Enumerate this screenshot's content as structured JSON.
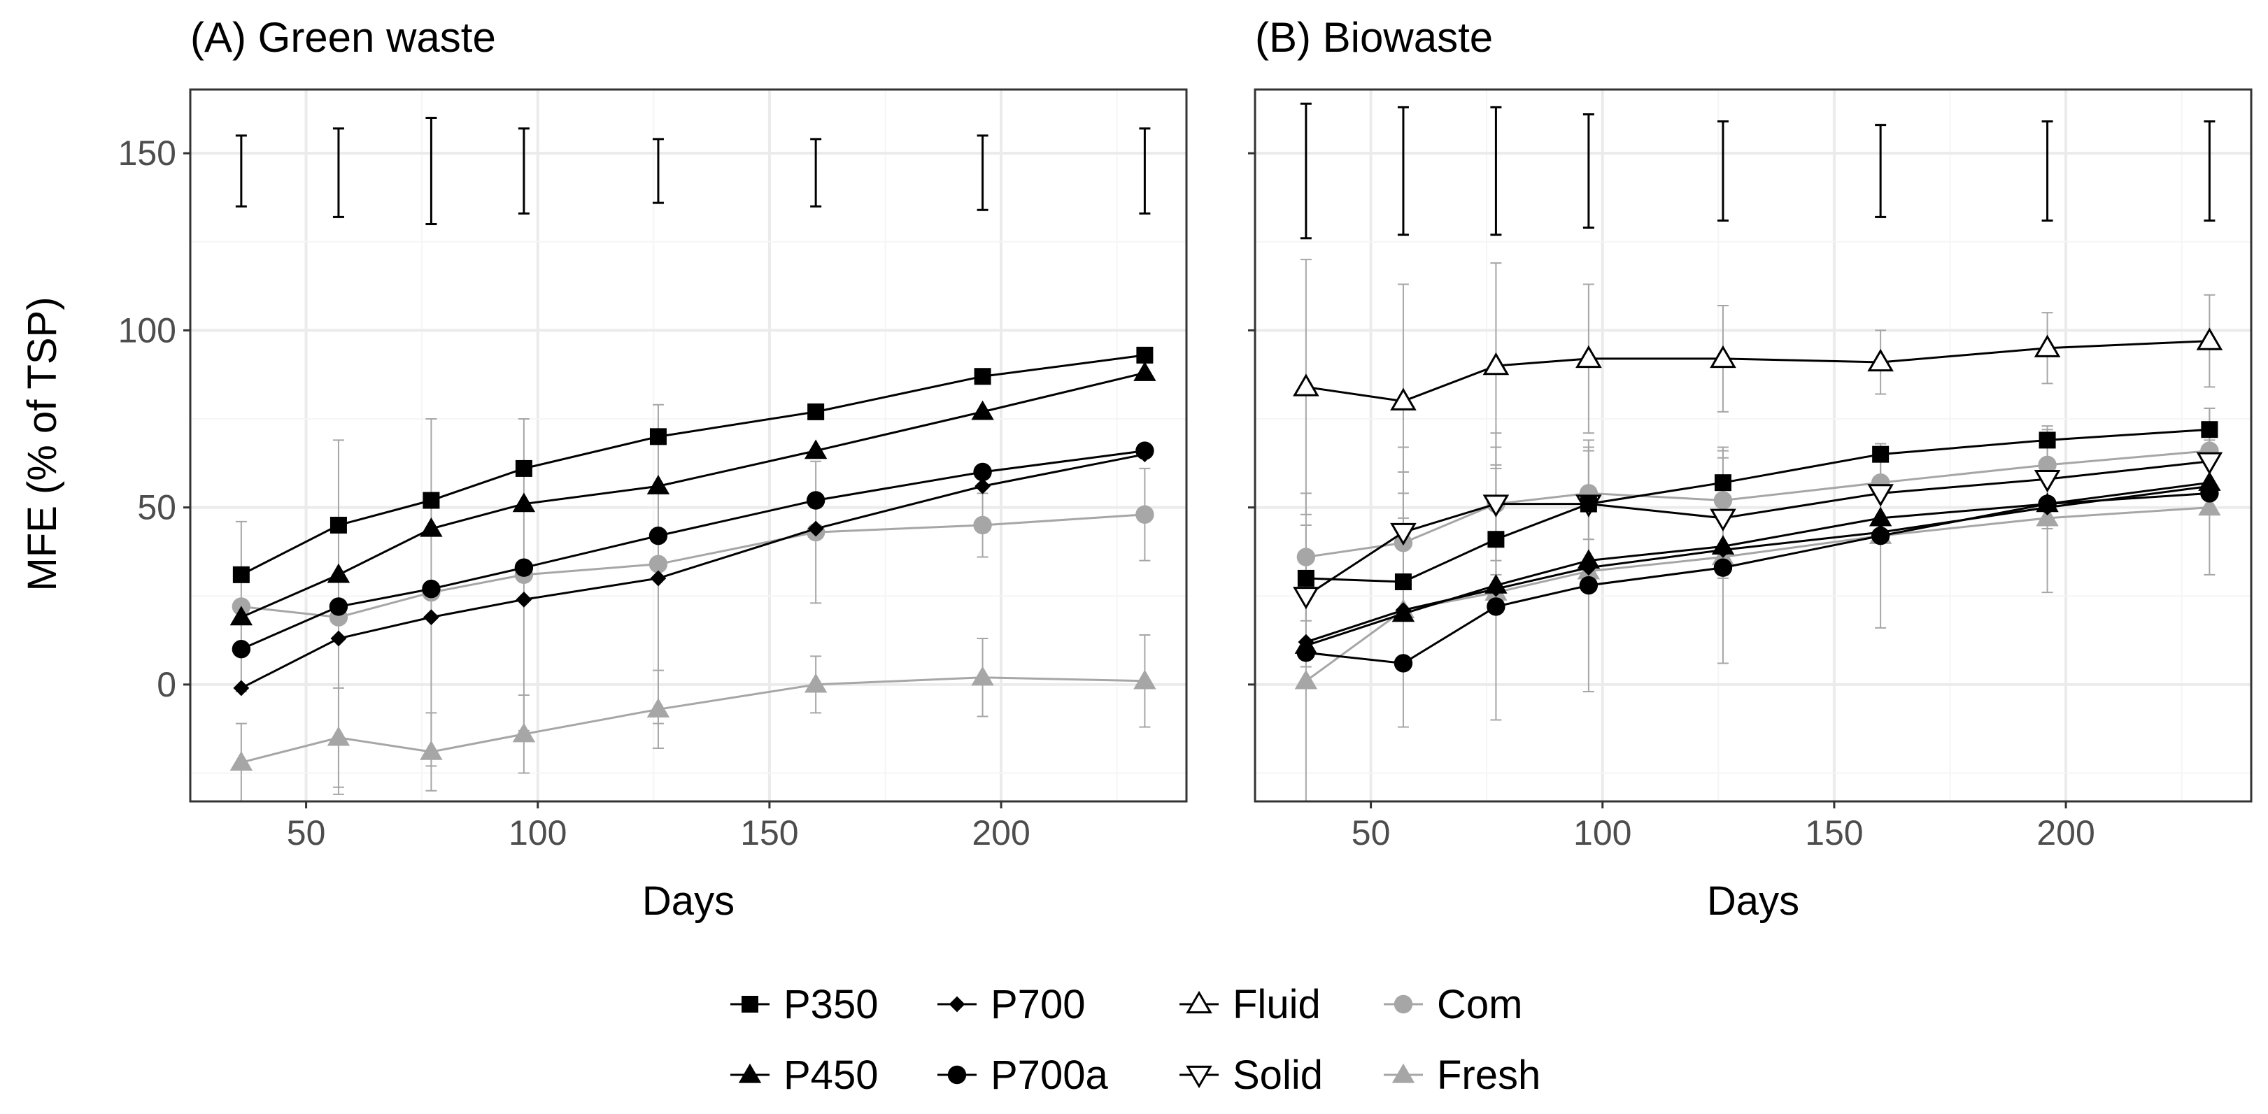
{
  "chart_data": [
    {
      "type": "line",
      "title": "(A) Green waste",
      "xlabel": "Days",
      "ylabel": "MFE (% of TSP)",
      "xlim": [
        25,
        240
      ],
      "ylim": [
        -33,
        168
      ],
      "xticks": [
        50,
        100,
        150,
        200
      ],
      "yticks": [
        0,
        50,
        100,
        150
      ],
      "grid": true,
      "x": [
        36,
        57,
        77,
        97,
        126,
        160,
        196,
        231
      ],
      "series": [
        {
          "name": "P350",
          "values": [
            31,
            45,
            52,
            61,
            70,
            77,
            87,
            93
          ]
        },
        {
          "name": "P450",
          "values": [
            19,
            31,
            44,
            51,
            56,
            66,
            77,
            88
          ]
        },
        {
          "name": "P700",
          "values": [
            -1,
            13,
            19,
            24,
            30,
            44,
            56,
            65
          ]
        },
        {
          "name": "P700a",
          "values": [
            10,
            22,
            27,
            33,
            42,
            52,
            60,
            66
          ]
        },
        {
          "name": "Com",
          "values": [
            22,
            19,
            26,
            31,
            34,
            43,
            45,
            48
          ],
          "error": [
            24,
            50,
            49,
            44,
            45,
            20,
            9,
            13
          ]
        },
        {
          "name": "Fresh",
          "values": [
            -22,
            -15,
            -19,
            -14,
            -7,
            0,
            2,
            1
          ],
          "error": [
            11,
            14,
            11,
            11,
            11,
            8,
            11,
            13
          ]
        }
      ],
      "lsd_bars": [
        {
          "x": 36,
          "low": 135,
          "high": 155
        },
        {
          "x": 57,
          "low": 132,
          "high": 157
        },
        {
          "x": 77,
          "low": 130,
          "high": 160
        },
        {
          "x": 97,
          "low": 133,
          "high": 157
        },
        {
          "x": 126,
          "low": 136,
          "high": 154
        },
        {
          "x": 160,
          "low": 135,
          "high": 154
        },
        {
          "x": 196,
          "low": 134,
          "high": 155
        },
        {
          "x": 231,
          "low": 133,
          "high": 157
        }
      ]
    },
    {
      "type": "line",
      "title": "(B) Biowaste",
      "xlabel": "Days",
      "ylabel": "",
      "xlim": [
        25,
        240
      ],
      "ylim": [
        -33,
        168
      ],
      "xticks": [
        50,
        100,
        150,
        200
      ],
      "yticks": [
        0,
        50,
        100,
        150
      ],
      "grid": true,
      "x": [
        36,
        57,
        77,
        97,
        126,
        160,
        196,
        231
      ],
      "series": [
        {
          "name": "P350",
          "values": [
            30,
            29,
            41,
            51,
            57,
            65,
            69,
            72
          ]
        },
        {
          "name": "P450",
          "values": [
            11,
            20,
            28,
            35,
            39,
            47,
            51,
            57
          ]
        },
        {
          "name": "P700",
          "values": [
            12,
            21,
            27,
            33,
            38,
            43,
            50,
            56
          ]
        },
        {
          "name": "P700a",
          "values": [
            9,
            6,
            22,
            28,
            33,
            42,
            51,
            54
          ]
        },
        {
          "name": "Fluid",
          "values": [
            84,
            80,
            90,
            92,
            92,
            91,
            95,
            97
          ],
          "error": [
            36,
            33,
            29,
            21,
            15,
            9,
            10,
            13
          ]
        },
        {
          "name": "Solid",
          "values": [
            25,
            43,
            51,
            51,
            47,
            54,
            58,
            63
          ],
          "error": [
            20,
            24,
            20,
            18,
            17,
            13,
            14,
            15
          ]
        },
        {
          "name": "Com",
          "values": [
            36,
            40,
            51,
            54,
            52,
            57,
            62,
            66
          ],
          "error": [
            18,
            20,
            16,
            13,
            15,
            11,
            11,
            12
          ]
        },
        {
          "name": "Fresh",
          "values": [
            1,
            21,
            26,
            32,
            36,
            42,
            47,
            50
          ],
          "error": [
            34,
            33,
            36,
            34,
            30,
            26,
            21,
            19
          ]
        }
      ],
      "lsd_bars": [
        {
          "x": 36,
          "low": 126,
          "high": 164
        },
        {
          "x": 57,
          "low": 127,
          "high": 163
        },
        {
          "x": 77,
          "low": 127,
          "high": 163
        },
        {
          "x": 97,
          "low": 129,
          "high": 161
        },
        {
          "x": 126,
          "low": 131,
          "high": 159
        },
        {
          "x": 160,
          "low": 132,
          "high": 158
        },
        {
          "x": 196,
          "low": 131,
          "high": 159
        },
        {
          "x": 231,
          "low": 131,
          "high": 159
        }
      ]
    }
  ],
  "legend": {
    "items": [
      {
        "name": "P350",
        "label": "P350",
        "shape": "square",
        "color": "#000000"
      },
      {
        "name": "P450",
        "label": "P450",
        "shape": "triangle",
        "color": "#000000"
      },
      {
        "name": "P700",
        "label": "P700",
        "shape": "diamond",
        "color": "#000000"
      },
      {
        "name": "P700a",
        "label": "P700a",
        "shape": "circle",
        "color": "#000000"
      },
      {
        "name": "Fluid",
        "label": "Fluid",
        "shape": "triangle-open",
        "color": "#000000"
      },
      {
        "name": "Solid",
        "label": "Solid",
        "shape": "triangle-down-open",
        "color": "#000000"
      },
      {
        "name": "Com",
        "label": "Com",
        "shape": "circle",
        "color": "#a6a6a6"
      },
      {
        "name": "Fresh",
        "label": "Fresh",
        "shape": "triangle",
        "color": "#a6a6a6"
      }
    ]
  },
  "styles": {
    "P350": {
      "shape": "square",
      "color": "#000000"
    },
    "P450": {
      "shape": "triangle",
      "color": "#000000"
    },
    "P700": {
      "shape": "diamond",
      "color": "#000000"
    },
    "P700a": {
      "shape": "circle",
      "color": "#000000"
    },
    "Fluid": {
      "shape": "triangle-open",
      "color": "#000000"
    },
    "Solid": {
      "shape": "triangle-down-open",
      "color": "#000000"
    },
    "Com": {
      "shape": "circle",
      "color": "#a6a6a6"
    },
    "Fresh": {
      "shape": "triangle",
      "color": "#a6a6a6"
    }
  },
  "colors": {
    "grid_major": "#ebebeb",
    "grid_minor": "#f5f5f5",
    "panel_border": "#333333",
    "tick_text": "#4d4d4d",
    "error_bar_grey": "#a6a6a6"
  }
}
